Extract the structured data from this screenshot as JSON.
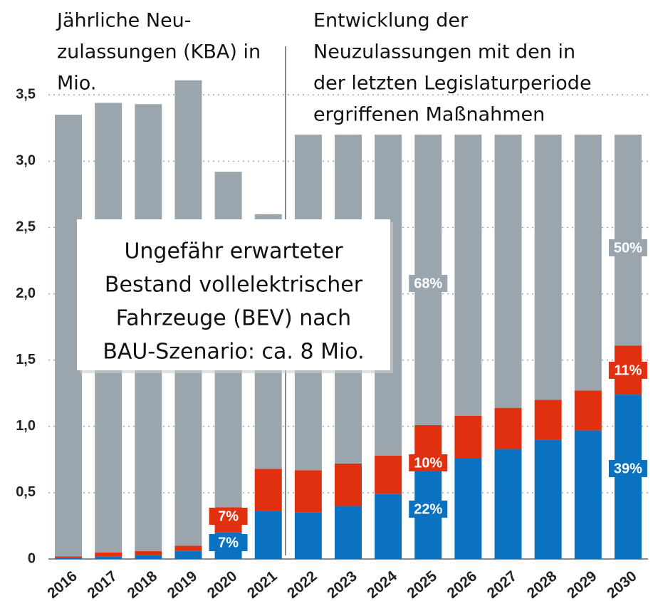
{
  "chart_data": {
    "type": "stacked_bar",
    "title_left": [
      "Jährliche Neu-",
      "zulassungen (KBA) in",
      "Mio."
    ],
    "title_right": [
      "Entwicklung der",
      "Neuzulassungen mit den in",
      "der letzten Legislaturperiode",
      "ergriffenen Maßnahmen"
    ],
    "box_text": [
      "Ungefähr erwarteter",
      "Bestand vollelektrischer",
      "Fahrzeuge (BEV) nach",
      "BAU-Szenario: ca. 8 Mio."
    ],
    "categories": [
      "2016",
      "2017",
      "2018",
      "2019",
      "2020",
      "2021",
      "2022",
      "2023",
      "2024",
      "2025",
      "2026",
      "2027",
      "2028",
      "2029",
      "2030"
    ],
    "series": [
      {
        "color": "#0a72c0",
        "values": [
          0.01,
          0.02,
          0.03,
          0.06,
          0.2,
          0.36,
          0.35,
          0.4,
          0.49,
          0.7,
          0.76,
          0.83,
          0.9,
          0.97,
          1.24
        ]
      },
      {
        "color": "#e03010",
        "values": [
          0.01,
          0.03,
          0.03,
          0.04,
          0.19,
          0.32,
          0.32,
          0.32,
          0.29,
          0.31,
          0.32,
          0.31,
          0.3,
          0.3,
          0.37
        ]
      },
      {
        "color": "#9aa5ad",
        "values": [
          3.33,
          3.39,
          3.37,
          3.51,
          2.53,
          1.92,
          2.53,
          2.48,
          2.42,
          2.19,
          2.12,
          2.06,
          2.0,
          1.93,
          1.59
        ]
      }
    ],
    "annotations": [
      "7%",
      "7%",
      "68%",
      "10%",
      "22%",
      "50%",
      "11%",
      "39%"
    ],
    "ylim": [
      0,
      3.7
    ],
    "yticks": [
      0,
      {
        "value": 0.5,
        "label": "0,5"
      },
      {
        "value": 1.0,
        "label": "1,0"
      },
      {
        "value": 1.5,
        "label": "1,5"
      },
      {
        "value": 2.0,
        "label": "2,0"
      },
      {
        "value": 2.5,
        "label": "2,5"
      },
      {
        "value": 3.0,
        "label": "3,0"
      },
      {
        "value": 3.5,
        "label": "3,5"
      }
    ],
    "grid": true
  }
}
